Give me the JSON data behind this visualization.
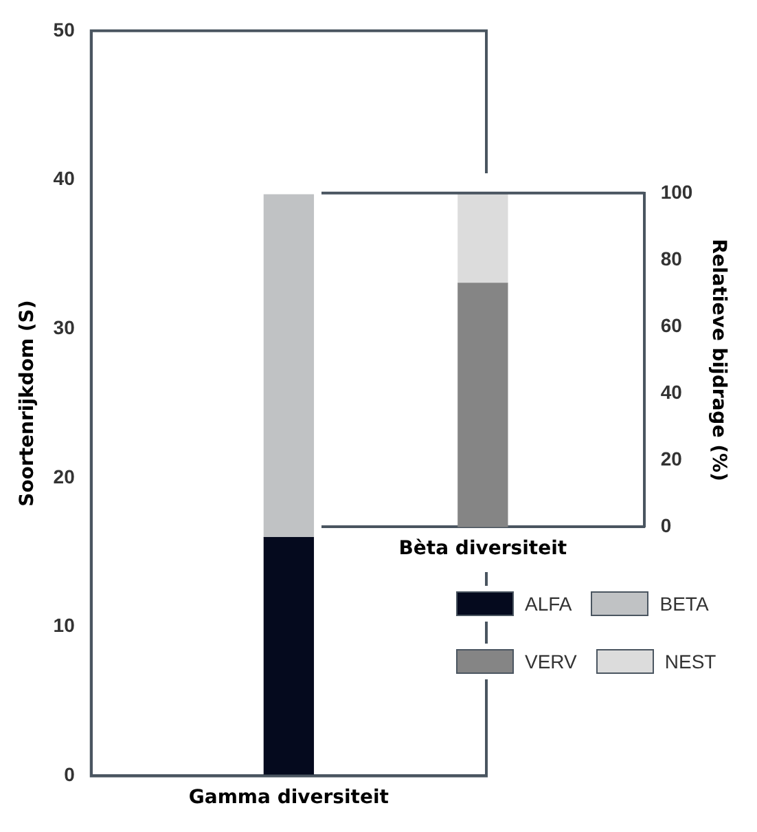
{
  "chart_data": [
    {
      "type": "bar",
      "stacked": true,
      "categories": [
        "Gamma diversiteit"
      ],
      "ylabel": "Soortenrijkdom (S)",
      "ylim": [
        0,
        50
      ],
      "yticks": [
        0,
        10,
        20,
        30,
        40,
        50
      ],
      "grid": false,
      "legend": "bottom right",
      "series": [
        {
          "name": "ALFA",
          "color": "#050a1e",
          "values": [
            16
          ]
        },
        {
          "name": "BETA",
          "color": "#c0c2c4",
          "values": [
            23
          ]
        }
      ]
    },
    {
      "type": "bar",
      "stacked": true,
      "categories": [
        "Bèta diversiteit"
      ],
      "y2label": "Relatieve bijdrage (%)",
      "y2lim": [
        0,
        100
      ],
      "y2ticks": [
        0,
        20,
        40,
        60,
        80,
        100
      ],
      "grid": false,
      "legend": "bottom right",
      "series": [
        {
          "name": "VERV",
          "color": "#858585",
          "values": [
            73
          ],
          "axis": "y2"
        },
        {
          "name": "NEST",
          "color": "#dcdcdc",
          "values": [
            27
          ],
          "axis": "y2"
        }
      ]
    }
  ]
}
